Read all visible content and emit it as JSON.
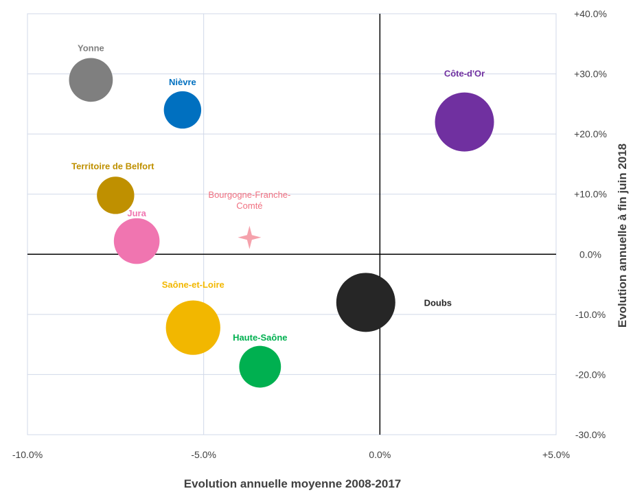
{
  "chart_data": {
    "type": "scatter",
    "xlabel": "Evolution annuelle moyenne 2008-2017",
    "ylabel": "Evolution annuelle à fin juin 2018",
    "xlim": [
      -10,
      5
    ],
    "ylim": [
      -30,
      40
    ],
    "x_ticks": [
      -10,
      -5,
      0,
      5
    ],
    "y_ticks": [
      -30,
      -20,
      -10,
      0,
      10,
      20,
      30,
      40
    ],
    "x_tick_labels": [
      "-10.0%",
      "-5.0%",
      "0.0%",
      "+5.0%"
    ],
    "y_tick_labels": [
      "-30.0%",
      "-20.0%",
      "-10.0%",
      "0.0%",
      "+10.0%",
      "+20.0%",
      "+30.0%",
      "+40.0%"
    ],
    "grid": true,
    "points": [
      {
        "label": "Yonne",
        "x": -8.2,
        "y": 29,
        "size": 0.55,
        "color": "#7f7f7f"
      },
      {
        "label": "Nièvre",
        "x": -5.6,
        "y": 24,
        "size": 0.4,
        "color": "#0070c0"
      },
      {
        "label": "Côte-d'Or",
        "x": 2.4,
        "y": 22,
        "size": 1.0,
        "color": "#7030a0"
      },
      {
        "label": "Territoire de Belfort",
        "x": -7.5,
        "y": 9.8,
        "size": 0.4,
        "color": "#bf9000"
      },
      {
        "label": "Jura",
        "x": -6.9,
        "y": 2.2,
        "size": 0.6,
        "color": "#f075b0"
      },
      {
        "label": "Doubs",
        "x": -0.4,
        "y": -8,
        "size": 1.0,
        "color": "#262626"
      },
      {
        "label": "Saône-et-Loire",
        "x": -5.3,
        "y": -12.2,
        "size": 0.85,
        "color": "#f2b700"
      },
      {
        "label": "Haute-Saône",
        "x": -3.4,
        "y": -18.7,
        "size": 0.5,
        "color": "#00b050"
      }
    ],
    "region": {
      "label": "Bourgogne-Franche-Comté",
      "label_lines": [
        "Bourgogne-Franche-",
        "Comté"
      ],
      "x": -3.7,
      "y": 2.8,
      "color": "#f07080"
    }
  }
}
